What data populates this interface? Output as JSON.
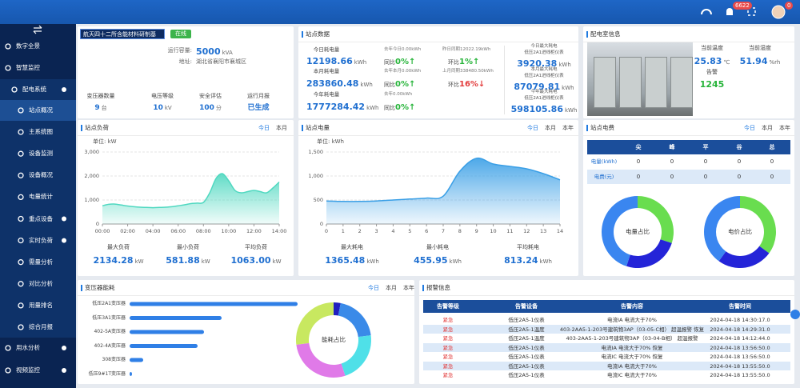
{
  "header": {
    "alert_badge": "6622",
    "user_badge": "0"
  },
  "sidebar": {
    "top": [
      "数字全景",
      "智慧监控"
    ],
    "group": "配电系统",
    "sub": [
      "站点概况",
      "主系统图",
      "设备监测",
      "设备概况",
      "电量统计",
      "重点设备",
      "实时负荷",
      "需量分析",
      "对比分析",
      "用量排名",
      "综合月报"
    ],
    "bottom": [
      "用水分析",
      "视频监控"
    ]
  },
  "station": {
    "name": "航天四十二所含能材料研制基",
    "status": "在线",
    "capacity_label": "运行容量:",
    "capacity": {
      "value": "5000",
      "unit": "kVA"
    },
    "address_label": "地址:",
    "address": "湖北省襄阳市襄城区",
    "stats": [
      {
        "label": "变压器数量",
        "value": "9",
        "unit": "台"
      },
      {
        "label": "电压等级",
        "value": "10",
        "unit": "kV"
      },
      {
        "label": "安全评估",
        "value": "100",
        "unit": "分"
      },
      {
        "label": "运行月报",
        "value": "已生成"
      }
    ]
  },
  "site_data": {
    "title": "站点数据",
    "rows": [
      {
        "label": "今日耗电量",
        "value": "12198.66",
        "unit": "kWh",
        "yoy_base": "去年今日0.00kWh",
        "yoy": "同比",
        "yoy_value": "0%↑",
        "mom_base": "昨日同期12022.19kWh",
        "mom": "环比",
        "mom_value": "1%↑"
      },
      {
        "label": "本月耗电量",
        "value": "283860.48",
        "unit": "kWh",
        "yoy_base": "去年本月0.00kWh",
        "yoy": "同比",
        "yoy_value": "0%↑",
        "mom_base": "上月同期338480.50kWh",
        "mom": "环比",
        "mom_value": "16%↓"
      },
      {
        "label": "今年耗电量",
        "value": "1777284.42",
        "unit": "kWh",
        "yoy_base": "去年0.00kWh",
        "yoy": "同比",
        "yoy_value": "0%↑"
      }
    ],
    "max": [
      {
        "label": "今日最大耗电",
        "device": "低压2A1进线柜仪表",
        "value": "3920.38",
        "unit": "kWh"
      },
      {
        "label": "本月最大耗电",
        "device": "低压2A1进线柜仪表",
        "value": "87079.81",
        "unit": "kWh"
      },
      {
        "label": "今年最大耗电",
        "device": "低压2A1进线柜仪表",
        "value": "598105.86",
        "unit": "kWh"
      }
    ]
  },
  "room": {
    "title": "配电室信息",
    "items": [
      {
        "label": "当前温度",
        "value": "25.83",
        "unit": "℃"
      },
      {
        "label": "当前湿度",
        "value": "51.94",
        "unit": "%rh"
      },
      {
        "label": "告警",
        "value": "1245"
      }
    ]
  },
  "load": {
    "title": "站点负荷",
    "tabs": [
      "今日",
      "本月"
    ],
    "unit_label": "单位: kW",
    "chart": {
      "type": "area",
      "color": "#4fd8c0",
      "x": [
        0,
        0.5,
        1,
        1.5,
        2,
        2.5,
        3,
        3.5,
        4,
        4.5,
        5,
        5.5,
        6,
        6.5,
        7,
        7.5,
        8,
        8.5,
        9,
        9.5,
        10,
        10.5,
        11,
        11.5,
        12,
        12.5,
        13,
        13.5,
        14
      ],
      "values": [
        760,
        820,
        830,
        790,
        750,
        720,
        700,
        690,
        680,
        690,
        700,
        720,
        760,
        800,
        850,
        870,
        900,
        1300,
        1900,
        2100,
        1800,
        1400,
        1300,
        1350,
        1400,
        1350,
        1300,
        1500,
        1750
      ],
      "xlim": [
        0,
        14
      ],
      "ylim": [
        0,
        3000
      ],
      "xticks": [
        {
          "value": 0,
          "label": "00:00"
        },
        {
          "value": 2,
          "label": "02:00"
        },
        {
          "value": 4,
          "label": "04:00"
        },
        {
          "value": 6,
          "label": "06:00"
        },
        {
          "value": 8,
          "label": "08:00"
        },
        {
          "value": 10,
          "label": "10:00"
        },
        {
          "value": 12,
          "label": "12:00"
        },
        {
          "value": 14,
          "label": "14:00"
        }
      ],
      "yticks": [
        0,
        {
          "value": 1000,
          "label": "1,000"
        },
        {
          "value": 2000,
          "label": "2,000"
        },
        {
          "value": 3000,
          "label": "3,000"
        }
      ],
      "grid": true
    },
    "stats": [
      {
        "label": "最大负荷",
        "value": "2134.28",
        "unit": "kW"
      },
      {
        "label": "最小负荷",
        "value": "581.88",
        "unit": "kW"
      },
      {
        "label": "平均负荷",
        "value": "1063.00",
        "unit": "kW"
      }
    ]
  },
  "energy": {
    "title": "站点电量",
    "tabs": [
      "今日",
      "本月",
      "本年"
    ],
    "unit_label": "单位: kWh",
    "chart": {
      "type": "area",
      "color": "#3a9fe6",
      "x": [
        0,
        1,
        2,
        3,
        4,
        5,
        6,
        7,
        8,
        9,
        10,
        11,
        12,
        13,
        14
      ],
      "values": [
        480,
        470,
        470,
        480,
        500,
        520,
        540,
        580,
        1100,
        1370,
        1250,
        1200,
        1150,
        1050,
        920
      ],
      "xlim": [
        0,
        14
      ],
      "ylim": [
        0,
        1500
      ],
      "xticks": [
        0,
        1,
        2,
        3,
        4,
        5,
        6,
        7,
        8,
        9,
        10,
        11,
        12,
        13,
        14
      ],
      "yticks": [
        0,
        500,
        {
          "value": 1000,
          "label": "1,000"
        },
        {
          "value": 1500,
          "label": "1,500"
        }
      ],
      "grid": true
    },
    "stats": [
      {
        "label": "最大耗电",
        "value": "1365.48",
        "unit": "kWh"
      },
      {
        "label": "最小耗电",
        "value": "455.95",
        "unit": "kWh"
      },
      {
        "label": "平均耗电",
        "value": "813.24",
        "unit": "kWh"
      }
    ]
  },
  "fee": {
    "title": "站点电费",
    "tabs": [
      "今日",
      "本月",
      "本年"
    ],
    "columns": [
      "尖",
      "峰",
      "平",
      "谷",
      "总"
    ],
    "rows": [
      {
        "label": "电量(kWh)",
        "values": [
          0,
          0,
          0,
          0,
          0
        ]
      },
      {
        "label": "电费(元)",
        "values": [
          0,
          0,
          0,
          0,
          0
        ]
      }
    ],
    "donuts": [
      {
        "type": "pie",
        "label": "电量占比",
        "values": [
          30,
          25,
          45
        ],
        "colors": [
          "#69dd4f",
          "#2424d8",
          "#3a86f0"
        ]
      },
      {
        "type": "pie",
        "label": "电价占比",
        "values": [
          35,
          25,
          40
        ],
        "colors": [
          "#69dd4f",
          "#2424d8",
          "#3a86f0"
        ]
      }
    ]
  },
  "transformer": {
    "title": "变压器能耗",
    "tabs": [
      "今日",
      "本月",
      "本年"
    ],
    "bars": {
      "type": "bar",
      "categories": [
        "低压2A1变压器",
        "低压3A1变压器",
        "402-5A变压器",
        "402-4A变压器",
        "308变压器",
        "低压9#1T变压器"
      ],
      "values": [
        210,
        115,
        93,
        85,
        17,
        3
      ],
      "color": "#2f7fe6"
    },
    "donut": {
      "type": "pie",
      "label": "能耗占比",
      "values": [
        3,
        20,
        22,
        28,
        27
      ],
      "colors": [
        "#2020c0",
        "#3a8ae8",
        "#4fe0e8",
        "#e07ae8",
        "#c8e860"
      ]
    }
  },
  "alarms": {
    "title": "报警信息",
    "columns": [
      "告警等级",
      "告警设备",
      "告警内容",
      "告警时间"
    ],
    "rows": [
      [
        "紧急",
        "低压2A5-1仪表",
        "电流IA 电流大于70%",
        "2024-04-18 14:30:17.0"
      ],
      [
        "紧急",
        "低压2A5-1温度",
        "403-2AA5-1-203号建筑物3AP（03-05-C相） 超温报警 恢复",
        "2024-04-18 14:29:31.0"
      ],
      [
        "紧急",
        "低压2A5-1温度",
        "403-2AA5-1-203号建筑物3AP（03-04-B相） 超温报警",
        "2024-04-18 14:12:44.0"
      ],
      [
        "紧急",
        "低压2A5-1仪表",
        "电流IA 电流大于70% 恢复",
        "2024-04-18 13:56:50.0"
      ],
      [
        "紧急",
        "低压2A5-1仪表",
        "电流IC 电流大于70% 恢复",
        "2024-04-18 13:56:50.0"
      ],
      [
        "紧急",
        "低压2A5-1仪表",
        "电流IA 电流大于70%",
        "2024-04-18 13:55:50.0"
      ],
      [
        "紧急",
        "低压2A5-1仪表",
        "电流IC 电流大于70%",
        "2024-04-18 13:55:50.0"
      ]
    ]
  }
}
